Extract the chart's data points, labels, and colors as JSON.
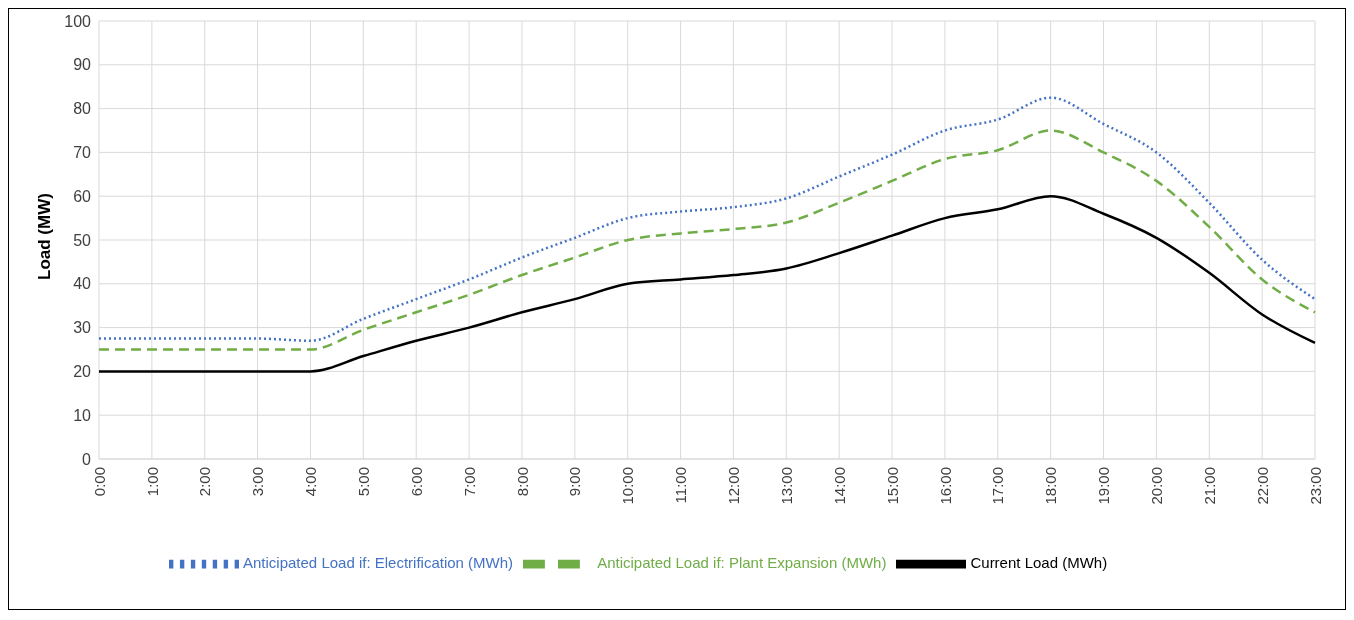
{
  "chart_data": {
    "type": "line",
    "ylabel": "Load (MW)",
    "categories": [
      "0:00",
      "1:00",
      "2:00",
      "3:00",
      "4:00",
      "5:00",
      "6:00",
      "7:00",
      "8:00",
      "9:00",
      "10:00",
      "11:00",
      "12:00",
      "13:00",
      "14:00",
      "15:00",
      "16:00",
      "17:00",
      "18:00",
      "19:00",
      "20:00",
      "21:00",
      "22:00",
      "23:00"
    ],
    "series": [
      {
        "name": "Current Load (MWh)",
        "color": "#000000",
        "line_style": "solid",
        "values": [
          20,
          20,
          20,
          20,
          20,
          23.5,
          27,
          30,
          33.5,
          36.5,
          40,
          41,
          42,
          43.5,
          47,
          51,
          55,
          57,
          60,
          56,
          50.5,
          42.5,
          33,
          26.5
        ]
      },
      {
        "name": "Anticipated Load if: Plant Expansion (MWh)",
        "color": "#70ad47",
        "line_style": "dashed",
        "values": [
          25,
          25,
          25,
          25,
          25,
          29.5,
          33.5,
          37.5,
          42,
          46,
          50,
          51.5,
          52.5,
          54,
          58.5,
          63.5,
          68.5,
          70.5,
          75,
          70,
          63.5,
          53,
          41,
          33.5
        ]
      },
      {
        "name": "Anticipated Load if: Electrification (MWh)",
        "color": "#4472c4",
        "line_style": "dotted",
        "values": [
          27.5,
          27.5,
          27.5,
          27.5,
          27,
          32,
          36.5,
          41,
          46,
          50.5,
          55,
          56.5,
          57.5,
          59.5,
          64.5,
          69.5,
          75,
          77.5,
          82.5,
          76.5,
          70,
          58.5,
          45.5,
          36.5
        ]
      }
    ],
    "ylim": [
      0,
      100
    ],
    "yticks": [
      0,
      10,
      20,
      30,
      40,
      50,
      60,
      70,
      80,
      90,
      100
    ],
    "grid": true,
    "legend": "bottom",
    "marker": "none"
  }
}
